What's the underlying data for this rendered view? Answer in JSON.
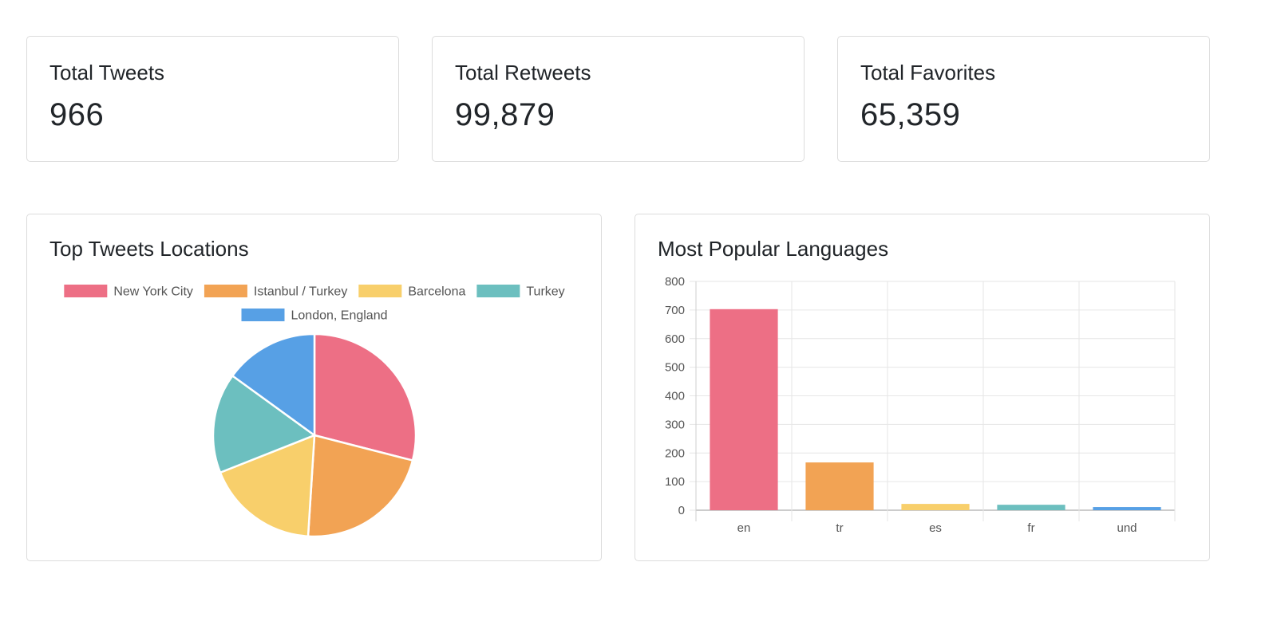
{
  "stats": [
    {
      "title": "Total Tweets",
      "value": "966"
    },
    {
      "title": "Total Retweets",
      "value": "99,879"
    },
    {
      "title": "Total Favorites",
      "value": "65,359"
    }
  ],
  "pie_panel": {
    "title": "Top Tweets Locations"
  },
  "bar_panel": {
    "title": "Most Popular Languages"
  },
  "colors": {
    "red": "#ed6f85",
    "orange": "#f2a354",
    "yellow": "#f8cf6b",
    "teal": "#6cbfbf",
    "blue": "#57a0e5"
  },
  "chart_data": [
    {
      "type": "pie",
      "title": "",
      "legend_position": "top",
      "labels": [
        "New York City",
        "Istanbul / Turkey",
        "Barcelona",
        "Turkey",
        "London, England"
      ],
      "values": [
        29,
        22,
        18,
        16,
        15
      ],
      "colors": [
        "#ed6f85",
        "#f2a354",
        "#f8cf6b",
        "#6cbfbf",
        "#57a0e5"
      ]
    },
    {
      "type": "bar",
      "title": "",
      "categories": [
        "en",
        "tr",
        "es",
        "fr",
        "und"
      ],
      "values": [
        703,
        167,
        22,
        19,
        11
      ],
      "colors": [
        "#ed6f85",
        "#f2a354",
        "#f8cf6b",
        "#6cbfbf",
        "#57a0e5"
      ],
      "ylim": [
        0,
        800
      ],
      "yticks": [
        0,
        100,
        200,
        300,
        400,
        500,
        600,
        700,
        800
      ],
      "grid": true,
      "legend": false
    }
  ]
}
